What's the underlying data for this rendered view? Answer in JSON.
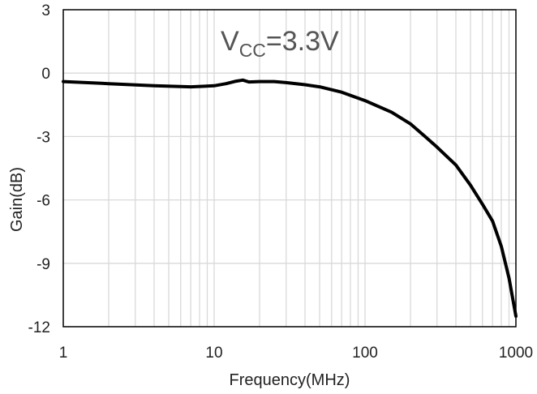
{
  "chart_data": {
    "type": "line",
    "xlabel": "Frequency(MHz)",
    "ylabel": "Gain(dB)",
    "xscale": "log",
    "xlim": [
      1,
      1000
    ],
    "ylim": [
      -12,
      3
    ],
    "xticks": [
      1,
      10,
      100,
      1000
    ],
    "xtick_labels": [
      "1",
      "10",
      "100",
      "1000"
    ],
    "yticks": [
      3,
      0,
      -3,
      -6,
      -9,
      -12
    ],
    "ytick_labels": [
      "3",
      "0",
      "-3",
      "-6",
      "-9",
      "-12"
    ],
    "grid": true,
    "annotation": {
      "main": "V",
      "sub": "CC",
      "rest": "=3.3V"
    },
    "series": [
      {
        "color": "#000000",
        "x": [
          1,
          2,
          4,
          7,
          10,
          12,
          14,
          15.5,
          17,
          20,
          25,
          30,
          40,
          50,
          70,
          100,
          150,
          200,
          250,
          300,
          400,
          500,
          600,
          700,
          800,
          900,
          1000
        ],
        "y": [
          -0.4,
          -0.5,
          -0.6,
          -0.65,
          -0.6,
          -0.5,
          -0.38,
          -0.33,
          -0.42,
          -0.4,
          -0.4,
          -0.45,
          -0.55,
          -0.65,
          -0.9,
          -1.3,
          -1.85,
          -2.4,
          -3.0,
          -3.5,
          -4.35,
          -5.3,
          -6.2,
          -7.0,
          -8.2,
          -9.7,
          -11.5
        ]
      }
    ]
  }
}
